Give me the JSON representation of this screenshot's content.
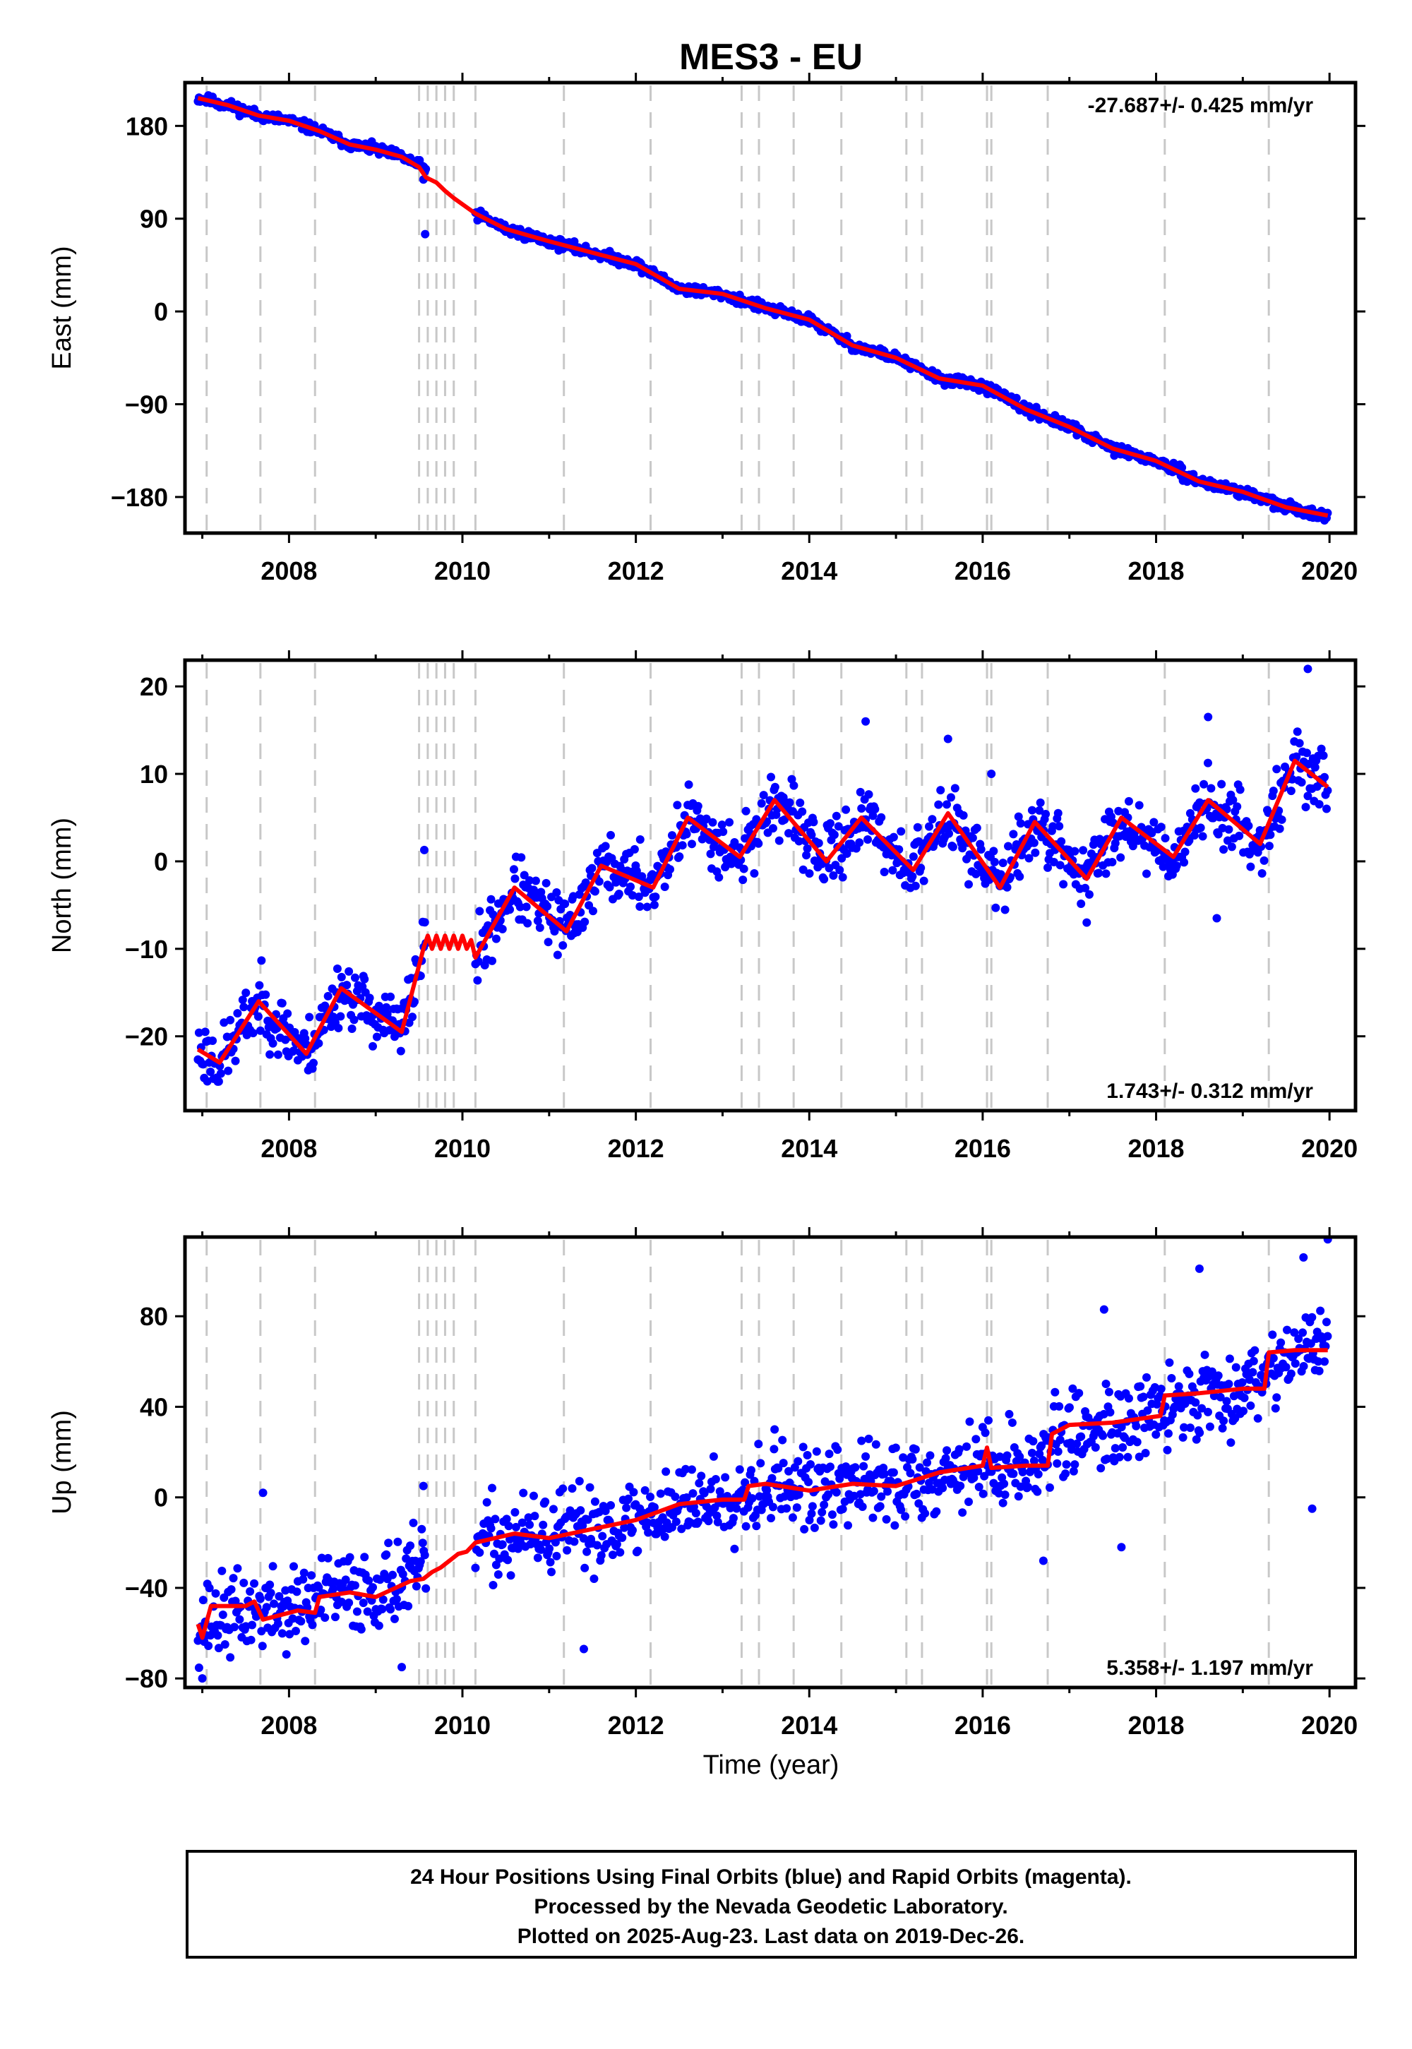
{
  "title": "MES3 - EU",
  "x_axis_label": "Time (year)",
  "footer": {
    "line1": "24 Hour Positions Using Final Orbits (blue) and Rapid Orbits (magenta).",
    "line2": "Processed by the Nevada Geodetic Laboratory.",
    "line3": "Plotted on 2025-Aug-23. Last data on 2019-Dec-26."
  },
  "colors": {
    "observations": "#0000ff",
    "model": "#ff0000",
    "events": "#c8c8c8",
    "axes": "#000000"
  },
  "chart_data": [
    {
      "type": "scatter",
      "component": "East",
      "ylabel": "East (mm)",
      "rate_text": "-27.687+/- 0.425 mm/yr",
      "rate_placement": "top-right",
      "xlim": [
        2006.8,
        2020.3
      ],
      "ylim": [
        -215,
        222
      ],
      "xticks": [
        2008,
        2010,
        2012,
        2014,
        2016,
        2018,
        2020
      ],
      "yticks": [
        -180,
        -90,
        0,
        90,
        180
      ],
      "ytick_labels": [
        "−180",
        "−90",
        "0",
        "90",
        "180"
      ],
      "series_observed": {
        "color": "blue",
        "spread": 2.5,
        "noise_seed": 11,
        "spans": [
          [
            2006.95,
            2009.58
          ],
          [
            2010.15,
            2019.98
          ]
        ],
        "x": [
          2006.95,
          2007.3,
          2007.65,
          2008.0,
          2008.35,
          2008.7,
          2009.0,
          2009.3,
          2009.58,
          2010.15,
          2010.5,
          2011.0,
          2011.5,
          2012.0,
          2012.5,
          2013.0,
          2013.5,
          2014.0,
          2014.5,
          2015.0,
          2015.5,
          2016.0,
          2016.5,
          2017.0,
          2017.5,
          2018.0,
          2018.5,
          2019.0,
          2019.5,
          2019.98
        ],
        "y": [
          207,
          200,
          190,
          185,
          175,
          162,
          157,
          150,
          138,
          95,
          80,
          68,
          57,
          46,
          22,
          17,
          3,
          -8,
          -33,
          -45,
          -65,
          -72,
          -95,
          -112,
          -133,
          -145,
          -165,
          -175,
          -190,
          -198
        ],
        "outliers": [
          [
            2009.57,
            75
          ],
          [
            2009.55,
            128
          ]
        ]
      },
      "model_line": {
        "x": [
          2006.95,
          2007.3,
          2007.65,
          2008.0,
          2008.35,
          2008.7,
          2009.0,
          2009.3,
          2009.5,
          2009.58,
          2009.7,
          2009.8,
          2009.9,
          2010.0,
          2010.15,
          2010.5,
          2011.0,
          2011.5,
          2012.0,
          2012.5,
          2013.0,
          2013.5,
          2014.0,
          2014.5,
          2015.0,
          2015.5,
          2016.0,
          2016.5,
          2017.0,
          2017.5,
          2018.0,
          2018.5,
          2019.0,
          2019.5,
          2019.98
        ],
        "y": [
          207,
          200,
          190,
          185,
          175,
          162,
          157,
          150,
          140,
          130,
          125,
          117,
          110,
          104,
          95,
          80,
          68,
          57,
          46,
          22,
          17,
          3,
          -8,
          -33,
          -45,
          -65,
          -72,
          -95,
          -112,
          -133,
          -145,
          -165,
          -175,
          -190,
          -198
        ]
      }
    },
    {
      "type": "scatter",
      "component": "North",
      "ylabel": "North (mm)",
      "rate_text": "1.743+/- 0.312 mm/yr",
      "rate_placement": "bottom-right",
      "xlim": [
        2006.8,
        2020.3
      ],
      "ylim": [
        -28.5,
        23
      ],
      "xticks": [
        2008,
        2010,
        2012,
        2014,
        2016,
        2018,
        2020
      ],
      "yticks": [
        -20,
        -10,
        0,
        10,
        20
      ],
      "ytick_labels": [
        "−20",
        "−10",
        "0",
        "10",
        "20"
      ],
      "series_observed": {
        "color": "blue",
        "spread": 1.8,
        "noise_seed": 23,
        "spans": [
          [
            2006.95,
            2009.58
          ],
          [
            2010.15,
            2019.98
          ]
        ],
        "x": [
          2006.95,
          2007.2,
          2007.65,
          2008.2,
          2008.6,
          2009.3,
          2009.55,
          2010.15,
          2010.6,
          2011.2,
          2011.6,
          2012.2,
          2012.6,
          2013.2,
          2013.6,
          2014.2,
          2014.6,
          2015.2,
          2015.6,
          2016.2,
          2016.6,
          2017.2,
          2017.6,
          2018.2,
          2018.6,
          2019.2,
          2019.6,
          2019.98
        ],
        "y": [
          -21.5,
          -23,
          -16,
          -22,
          -14.5,
          -19.5,
          -10,
          -11,
          -3,
          -8,
          -0.5,
          -3,
          5,
          0.5,
          7,
          0,
          5,
          -1,
          5.5,
          -3,
          4.5,
          -2,
          5,
          0.5,
          7,
          2,
          11.5,
          8.5
        ],
        "outliers": [
          [
            2009.56,
            1.3
          ],
          [
            2012.05,
            2.5
          ],
          [
            2014.65,
            16
          ],
          [
            2015.6,
            14
          ],
          [
            2018.6,
            16.5
          ],
          [
            2018.7,
            -6.5
          ],
          [
            2017.2,
            -7
          ],
          [
            2019.75,
            22
          ],
          [
            2016.1,
            10
          ]
        ]
      },
      "model_line": {
        "x": [
          2006.95,
          2007.2,
          2007.65,
          2008.2,
          2008.6,
          2009.3,
          2009.55,
          2009.6,
          2009.65,
          2009.7,
          2009.75,
          2009.8,
          2009.85,
          2009.9,
          2009.95,
          2010.0,
          2010.05,
          2010.1,
          2010.15,
          2010.6,
          2011.2,
          2011.6,
          2012.2,
          2012.6,
          2013.2,
          2013.6,
          2014.2,
          2014.6,
          2015.2,
          2015.6,
          2016.2,
          2016.6,
          2017.2,
          2017.6,
          2018.2,
          2018.6,
          2019.2,
          2019.6,
          2019.98
        ],
        "y": [
          -21.5,
          -23,
          -16,
          -22,
          -14.5,
          -19.5,
          -10,
          -8.5,
          -10,
          -8.5,
          -10,
          -8.5,
          -10,
          -8.5,
          -10,
          -8.5,
          -10,
          -9,
          -11,
          -3,
          -8,
          -0.5,
          -3,
          5,
          0.5,
          7,
          0,
          5,
          -1,
          5.5,
          -3,
          4.5,
          -2,
          5,
          0.5,
          7,
          2,
          11.5,
          8.5
        ]
      }
    },
    {
      "type": "scatter",
      "component": "Up",
      "ylabel": "Up (mm)",
      "rate_text": "5.358+/- 1.197 mm/yr",
      "rate_placement": "bottom-right",
      "xlim": [
        2006.8,
        2020.3
      ],
      "ylim": [
        -84,
        115
      ],
      "xticks": [
        2008,
        2010,
        2012,
        2014,
        2016,
        2018,
        2020
      ],
      "yticks": [
        -80,
        -40,
        0,
        40,
        80
      ],
      "ytick_labels": [
        "−80",
        "−40",
        "0",
        "40",
        "80"
      ],
      "series_observed": {
        "color": "blue",
        "spread": 9,
        "noise_seed": 37,
        "spans": [
          [
            2006.95,
            2009.58
          ],
          [
            2010.15,
            2019.98
          ]
        ],
        "x": [
          2006.95,
          2007.6,
          2008.0,
          2008.5,
          2009.0,
          2009.55,
          2010.15,
          2010.6,
          2011.0,
          2011.5,
          2012.0,
          2012.5,
          2013.0,
          2013.5,
          2014.0,
          2014.5,
          2015.0,
          2015.5,
          2016.0,
          2016.5,
          2017.0,
          2017.5,
          2018.0,
          2018.5,
          2019.0,
          2019.5,
          2019.98
        ],
        "y": [
          -55,
          -50,
          -50,
          -43,
          -40,
          -33,
          -20,
          -18,
          -17,
          -13,
          -10,
          -3,
          0,
          6,
          3,
          6,
          5,
          11,
          14,
          14,
          28,
          32,
          36,
          46,
          48,
          64,
          65
        ],
        "outliers": [
          [
            2007.7,
            2
          ],
          [
            2009.55,
            5
          ],
          [
            2011.4,
            -67
          ],
          [
            2013.6,
            30
          ],
          [
            2016.0,
            31
          ],
          [
            2016.7,
            -28
          ],
          [
            2017.4,
            83
          ],
          [
            2017.6,
            -22
          ],
          [
            2018.5,
            101
          ],
          [
            2019.7,
            106
          ],
          [
            2019.98,
            114
          ],
          [
            2019.8,
            -5
          ],
          [
            2009.3,
            -75
          ],
          [
            2007.0,
            -80
          ]
        ]
      },
      "model_line": {
        "x": [
          2006.95,
          2007.0,
          2007.1,
          2007.5,
          2007.6,
          2007.7,
          2008.1,
          2008.3,
          2008.35,
          2008.7,
          2009.0,
          2009.4,
          2009.55,
          2009.65,
          2009.75,
          2009.85,
          2009.95,
          2010.05,
          2010.15,
          2010.6,
          2011.0,
          2011.5,
          2012.0,
          2012.5,
          2013.0,
          2013.25,
          2013.3,
          2013.5,
          2014.0,
          2014.5,
          2015.0,
          2015.5,
          2016.0,
          2016.05,
          2016.1,
          2016.5,
          2016.75,
          2016.8,
          2017.0,
          2017.5,
          2018.05,
          2018.1,
          2018.5,
          2019.0,
          2019.25,
          2019.3,
          2019.6,
          2019.98
        ],
        "y": [
          -56,
          -62,
          -48,
          -48,
          -46,
          -54,
          -50,
          -51,
          -44,
          -42,
          -44,
          -37,
          -36,
          -33,
          -31,
          -28,
          -25,
          -24,
          -20,
          -16,
          -18,
          -14,
          -10,
          -3,
          -1,
          -1,
          5,
          6,
          3,
          6,
          5,
          11,
          14,
          22,
          13,
          14,
          14,
          28,
          32,
          33,
          36,
          45,
          46,
          48,
          48,
          64,
          65,
          65
        ]
      }
    }
  ],
  "event_lines_year": [
    2007.05,
    2007.67,
    2008.3,
    2009.5,
    2009.6,
    2009.7,
    2009.8,
    2009.9,
    2010.15,
    2011.17,
    2012.17,
    2013.22,
    2013.42,
    2013.82,
    2014.37,
    2015.12,
    2015.3,
    2016.05,
    2016.1,
    2016.75,
    2018.1,
    2019.3
  ]
}
